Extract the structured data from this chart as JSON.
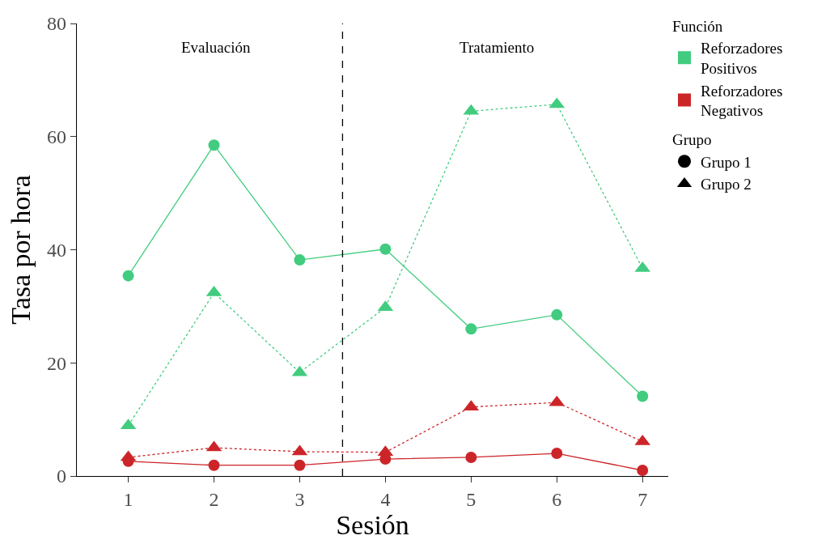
{
  "chart_data": {
    "type": "line",
    "xlabel": "Sesión",
    "ylabel": "Tasa por hora",
    "x": [
      1,
      2,
      3,
      4,
      5,
      6,
      7
    ],
    "xlim": [
      0.4,
      7.3
    ],
    "xticks": [
      1,
      2,
      3,
      4,
      5,
      6,
      7
    ],
    "ylim": [
      0,
      80
    ],
    "yticks": [
      0,
      20,
      40,
      60,
      80
    ],
    "legend": "top right",
    "legend_title": [
      "Función",
      "Grupo"
    ],
    "series": [
      {
        "color": "#41cc7f",
        "marker": "circle",
        "line_style": "solid",
        "values": [
          35.4,
          58.5,
          38.2,
          40.1,
          26.0,
          28.5,
          14.1
        ]
      },
      {
        "color": "#41cc7f",
        "marker": "triangle",
        "line_style": "dotted",
        "values": [
          8.9,
          32.4,
          18.3,
          29.8,
          64.5,
          65.7,
          36.7
        ]
      },
      {
        "color": "#cc2529",
        "marker": "circle",
        "line_style": "solid",
        "values": [
          2.6,
          1.9,
          1.9,
          3.0,
          3.3,
          4.0,
          1.0
        ]
      },
      {
        "color": "#cc2529",
        "marker": "triangle",
        "line_style": "dotted",
        "values": [
          3.3,
          5.0,
          4.3,
          4.2,
          12.2,
          13.0,
          6.1
        ]
      },
      {
        "name": "Reforzadores\nPositivos",
        "color": "#41cc7f",
        "marker": "square",
        "values": [
          null,
          null,
          null,
          null,
          null,
          null,
          null
        ]
      },
      {
        "name": "Reforzadores\nNegativos",
        "color": "#cc2529",
        "marker": "square",
        "values": [
          null,
          null,
          null,
          null,
          null,
          null,
          null
        ]
      },
      {
        "name": "Grupo 1",
        "color": "#000000",
        "marker": "circle",
        "values": [
          null,
          null,
          null,
          null,
          null,
          null,
          null
        ]
      },
      {
        "name": "Grupo 2",
        "color": "#000000",
        "marker": "triangle",
        "values": [
          null,
          null,
          null,
          null,
          null,
          null,
          null
        ]
      }
    ],
    "ref_lines": [
      {
        "axis": "x",
        "value": 3.5,
        "line_style": "dashed",
        "color": "#000000"
      }
    ],
    "annotations": [
      "Evaluación",
      "Tratamiento"
    ]
  }
}
